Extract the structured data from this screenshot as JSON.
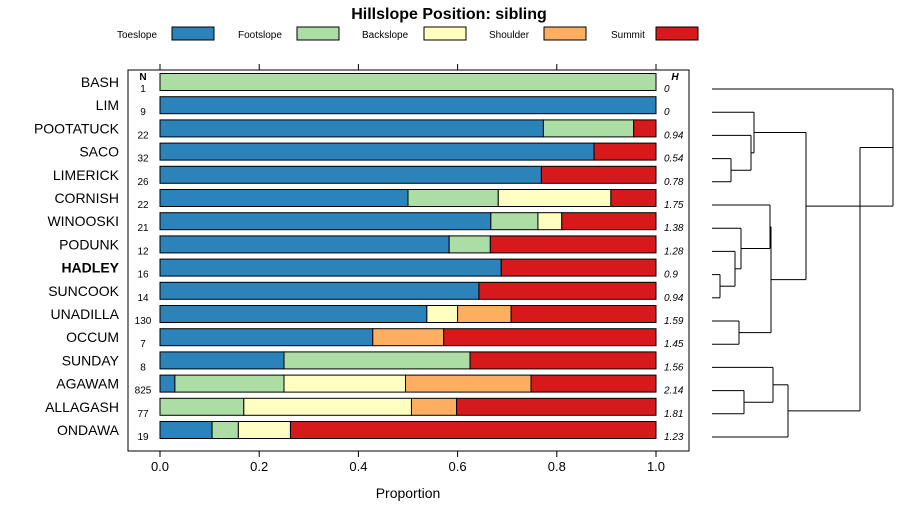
{
  "chart_data": {
    "type": "bar",
    "orientation": "horizontal",
    "stacked": true,
    "title": "Hillslope Position: sibling",
    "xlabel": "Proportion",
    "ylabel": "",
    "xlim": [
      0,
      1
    ],
    "x_ticks": [
      "0.0",
      "0.2",
      "0.4",
      "0.6",
      "0.8",
      "1.0"
    ],
    "x_tick_values": [
      0,
      0.2,
      0.4,
      0.6,
      0.8,
      1.0
    ],
    "n_header": "N",
    "h_header": "H",
    "legend": [
      {
        "name": "Toeslope",
        "color": "#2b83ba"
      },
      {
        "name": "Footslope",
        "color": "#abdda4"
      },
      {
        "name": "Backslope",
        "color": "#ffffbf"
      },
      {
        "name": "Shoulder",
        "color": "#fdae61"
      },
      {
        "name": "Summit",
        "color": "#d7191c"
      }
    ],
    "rows": [
      {
        "name": "BASH",
        "n": "1",
        "h": "0",
        "bold": false,
        "values": [
          0.0,
          1.0,
          0.0,
          0.0,
          0.0
        ]
      },
      {
        "name": "LIM",
        "n": "9",
        "h": "0",
        "bold": false,
        "values": [
          1.0,
          0.0,
          0.0,
          0.0,
          0.0
        ]
      },
      {
        "name": "POOTATUCK",
        "n": "22",
        "h": "0.94",
        "bold": false,
        "values": [
          0.773,
          0.182,
          0.0,
          0.0,
          0.045
        ]
      },
      {
        "name": "SACO",
        "n": "32",
        "h": "0.54",
        "bold": false,
        "values": [
          0.875,
          0.0,
          0.0,
          0.0,
          0.125
        ]
      },
      {
        "name": "LIMERICK",
        "n": "26",
        "h": "0.78",
        "bold": false,
        "values": [
          0.769,
          0.0,
          0.0,
          0.0,
          0.231
        ]
      },
      {
        "name": "CORNISH",
        "n": "22",
        "h": "1.75",
        "bold": false,
        "values": [
          0.5,
          0.182,
          0.227,
          0.0,
          0.091
        ]
      },
      {
        "name": "WINOOSKI",
        "n": "21",
        "h": "1.38",
        "bold": false,
        "values": [
          0.667,
          0.095,
          0.048,
          0.0,
          0.19
        ]
      },
      {
        "name": "PODUNK",
        "n": "12",
        "h": "1.28",
        "bold": false,
        "values": [
          0.583,
          0.083,
          0.0,
          0.0,
          0.334
        ]
      },
      {
        "name": "HADLEY",
        "n": "16",
        "h": "0.9",
        "bold": true,
        "values": [
          0.688,
          0.0,
          0.0,
          0.0,
          0.312
        ]
      },
      {
        "name": "SUNCOOK",
        "n": "14",
        "h": "0.94",
        "bold": false,
        "values": [
          0.643,
          0.0,
          0.0,
          0.0,
          0.357
        ]
      },
      {
        "name": "UNADILLA",
        "n": "130",
        "h": "1.59",
        "bold": false,
        "values": [
          0.538,
          0.0,
          0.062,
          0.108,
          0.292
        ]
      },
      {
        "name": "OCCUM",
        "n": "7",
        "h": "1.45",
        "bold": false,
        "values": [
          0.429,
          0.0,
          0.0,
          0.143,
          0.428
        ]
      },
      {
        "name": "SUNDAY",
        "n": "8",
        "h": "1.56",
        "bold": false,
        "values": [
          0.25,
          0.375,
          0.0,
          0.0,
          0.375
        ]
      },
      {
        "name": "AGAWAM",
        "n": "825",
        "h": "2.14",
        "bold": false,
        "values": [
          0.03,
          0.22,
          0.245,
          0.253,
          0.252
        ]
      },
      {
        "name": "ALLAGASH",
        "n": "77",
        "h": "1.81",
        "bold": false,
        "values": [
          0.0,
          0.169,
          0.338,
          0.091,
          0.402
        ]
      },
      {
        "name": "ONDAWA",
        "n": "19",
        "h": "1.23",
        "bold": false,
        "values": [
          0.105,
          0.053,
          0.105,
          0.0,
          0.737
        ]
      }
    ]
  }
}
